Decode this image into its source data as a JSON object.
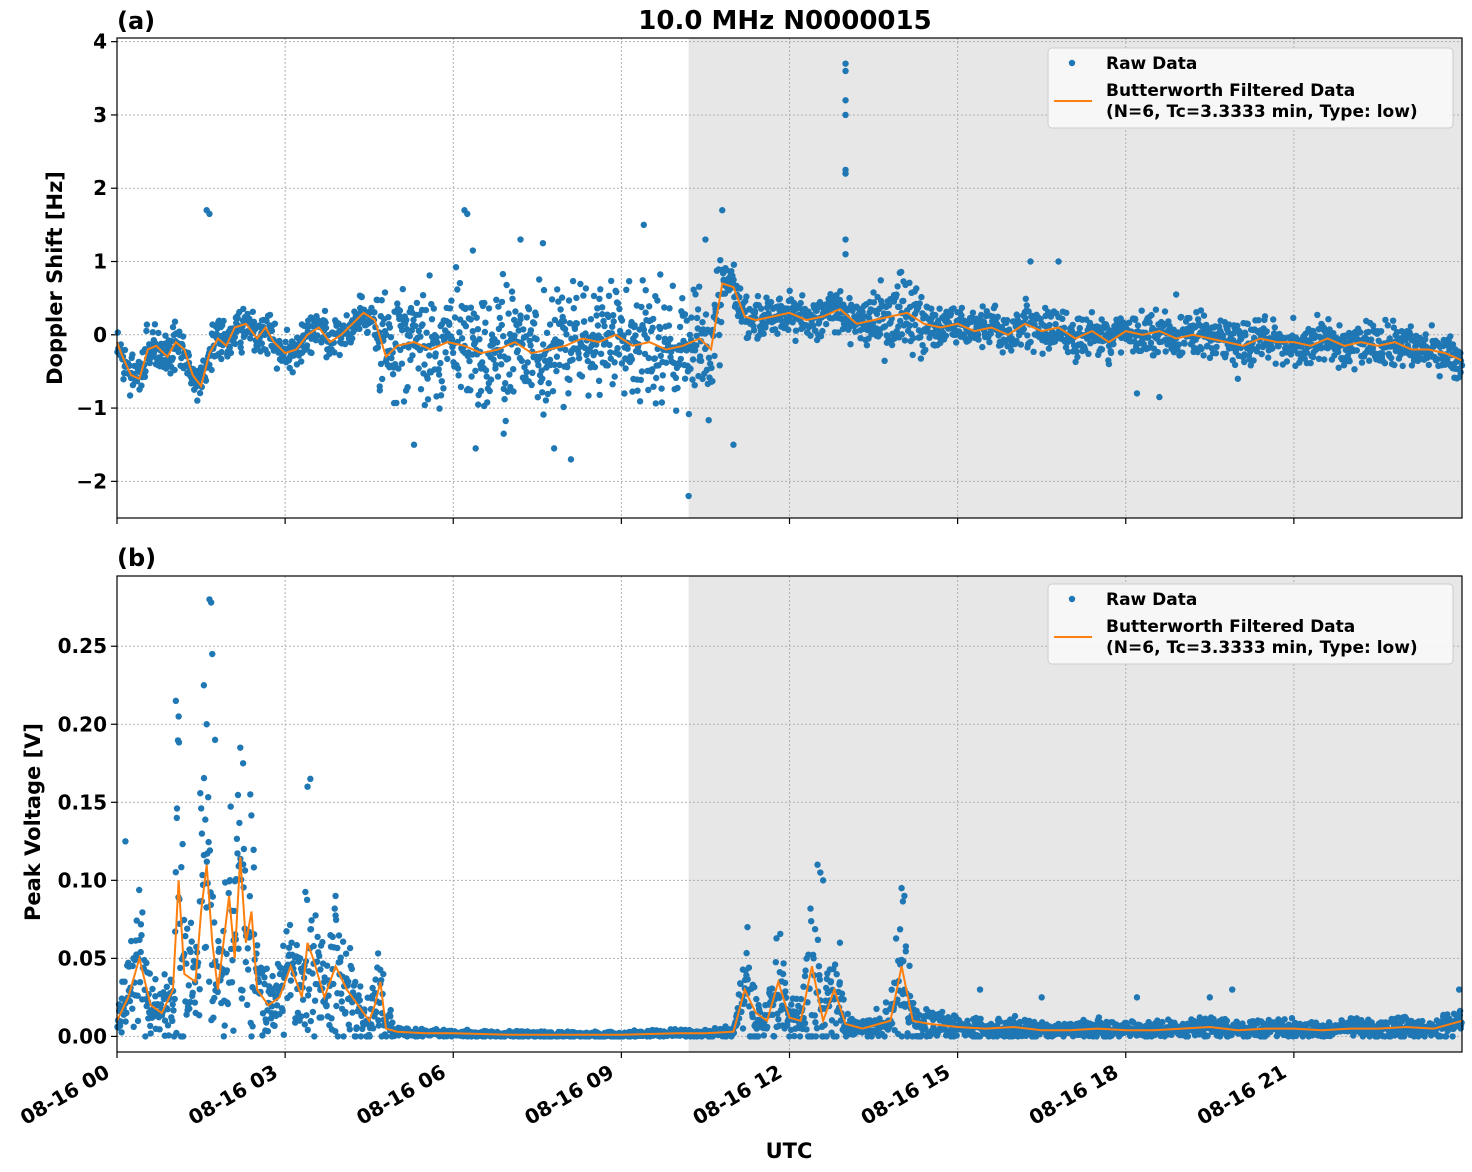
{
  "figure": {
    "title": "10.0 MHz N0000015",
    "xlabel": "UTC"
  },
  "colors": {
    "raw": "#1f77b4",
    "filtered": "#ff7f0e",
    "shade": "#e7e7e7",
    "grid": "#b0b0b0"
  },
  "legend": {
    "raw_label": "Raw Data",
    "filtered_label_line1": "Butterworth Filtered Data",
    "filtered_label_line2": "(N=6, Tc=3.3333 min, Type: low)",
    "placement": "upper right"
  },
  "chart_data": [
    {
      "type": "scatter",
      "panel_label": "(a)",
      "title": "10.0 MHz N0000015",
      "xlabel": "",
      "ylabel": "Doppler Shift [Hz]",
      "x_unit": "hours since 08-16 00:00 UTC",
      "xlim": [
        0,
        24
      ],
      "ylim": [
        -2.5,
        4.05
      ],
      "xticks": [
        "08-16 00",
        "08-16 03",
        "08-16 06",
        "08-16 09",
        "08-16 12",
        "08-16 15",
        "08-16 18",
        "08-16 21"
      ],
      "yticks": [
        "−2",
        "−1",
        "0",
        "1",
        "2",
        "3",
        "4"
      ],
      "ytick_values": [
        -2,
        -1,
        0,
        1,
        2,
        3,
        4
      ],
      "grid": true,
      "shaded_region_x": [
        10.2,
        24
      ],
      "series": [
        {
          "name": "Butterworth Filtered Data",
          "style": "line",
          "x": [
            0,
            0.1,
            0.25,
            0.4,
            0.55,
            0.7,
            0.9,
            1.05,
            1.2,
            1.35,
            1.5,
            1.65,
            1.8,
            1.95,
            2.1,
            2.3,
            2.5,
            2.65,
            2.8,
            3.0,
            3.2,
            3.4,
            3.6,
            3.8,
            4.0,
            4.2,
            4.4,
            4.6,
            4.8,
            5.0,
            5.3,
            5.6,
            5.9,
            6.2,
            6.5,
            6.8,
            7.1,
            7.4,
            7.7,
            8.0,
            8.3,
            8.6,
            8.9,
            9.2,
            9.5,
            9.8,
            10.1,
            10.4,
            10.6,
            10.8,
            11.0,
            11.2,
            11.4,
            11.7,
            12.0,
            12.3,
            12.6,
            12.9,
            13.2,
            13.5,
            13.8,
            14.1,
            14.4,
            14.7,
            15.0,
            15.3,
            15.6,
            15.9,
            16.2,
            16.5,
            16.8,
            17.1,
            17.4,
            17.7,
            18.0,
            18.3,
            18.6,
            18.9,
            19.2,
            19.5,
            19.8,
            20.1,
            20.4,
            20.7,
            21.0,
            21.3,
            21.6,
            21.9,
            22.2,
            22.5,
            22.8,
            23.1,
            23.4,
            23.7,
            24.0
          ],
          "y": [
            -0.1,
            -0.3,
            -0.55,
            -0.6,
            -0.2,
            -0.15,
            -0.3,
            -0.1,
            -0.2,
            -0.55,
            -0.7,
            -0.25,
            -0.05,
            -0.15,
            0.1,
            0.15,
            -0.05,
            0.1,
            -0.1,
            -0.25,
            -0.2,
            0.0,
            0.1,
            -0.1,
            0.0,
            0.15,
            0.3,
            0.2,
            -0.3,
            -0.15,
            -0.1,
            -0.2,
            -0.1,
            -0.15,
            -0.25,
            -0.2,
            -0.1,
            -0.25,
            -0.2,
            -0.15,
            -0.05,
            -0.1,
            0.0,
            -0.15,
            -0.1,
            -0.2,
            -0.15,
            -0.05,
            -0.2,
            0.7,
            0.65,
            0.25,
            0.2,
            0.25,
            0.3,
            0.2,
            0.25,
            0.35,
            0.15,
            0.2,
            0.25,
            0.3,
            0.15,
            0.1,
            0.15,
            0.05,
            0.1,
            0.0,
            0.15,
            0.05,
            0.1,
            -0.05,
            0.05,
            -0.1,
            0.05,
            0.0,
            0.05,
            -0.05,
            0.0,
            -0.05,
            -0.1,
            -0.15,
            -0.05,
            -0.1,
            -0.1,
            -0.15,
            -0.05,
            -0.15,
            -0.1,
            -0.15,
            -0.1,
            -0.2,
            -0.2,
            -0.25,
            -0.35
          ]
        },
        {
          "name": "Raw Data",
          "style": "points",
          "points": [
            [
              1.6,
              1.7
            ],
            [
              1.65,
              1.65
            ],
            [
              5.3,
              -1.5
            ],
            [
              6.2,
              1.7
            ],
            [
              6.25,
              1.65
            ],
            [
              6.35,
              1.15
            ],
            [
              6.4,
              -1.55
            ],
            [
              6.9,
              -1.35
            ],
            [
              7.2,
              1.3
            ],
            [
              7.6,
              1.25
            ],
            [
              7.8,
              -1.55
            ],
            [
              8.1,
              -1.7
            ],
            [
              9.4,
              1.5
            ],
            [
              10.2,
              -2.2
            ],
            [
              10.5,
              1.3
            ],
            [
              10.8,
              1.7
            ],
            [
              11.0,
              -1.5
            ],
            [
              13.0,
              3.7
            ],
            [
              13.0,
              3.6
            ],
            [
              13.0,
              3.2
            ],
            [
              13.0,
              3.0
            ],
            [
              13.0,
              2.25
            ],
            [
              13.0,
              2.2
            ],
            [
              13.0,
              1.3
            ],
            [
              13.0,
              1.1
            ],
            [
              16.3,
              1.0
            ],
            [
              16.8,
              1.0
            ],
            [
              17.7,
              -0.4
            ],
            [
              18.2,
              -0.8
            ],
            [
              18.6,
              -0.85
            ],
            [
              18.9,
              0.55
            ],
            [
              20.0,
              -0.6
            ],
            [
              21.8,
              -0.45
            ]
          ]
        }
      ]
    },
    {
      "type": "scatter",
      "panel_label": "(b)",
      "title": "",
      "xlabel": "UTC",
      "ylabel": "Peak Voltage [V]",
      "x_unit": "hours since 08-16 00:00 UTC",
      "xlim": [
        0,
        24
      ],
      "ylim": [
        -0.01,
        0.295
      ],
      "xticks": [
        "08-16 00",
        "08-16 03",
        "08-16 06",
        "08-16 09",
        "08-16 12",
        "08-16 15",
        "08-16 18",
        "08-16 21"
      ],
      "yticks": [
        "0.00",
        "0.05",
        "0.10",
        "0.15",
        "0.20",
        "0.25"
      ],
      "ytick_values": [
        0,
        0.05,
        0.1,
        0.15,
        0.2,
        0.25
      ],
      "grid": true,
      "shaded_region_x": [
        10.2,
        24
      ],
      "series": [
        {
          "name": "Butterworth Filtered Data",
          "style": "line",
          "x": [
            0,
            0.2,
            0.4,
            0.6,
            0.8,
            1.0,
            1.1,
            1.2,
            1.4,
            1.5,
            1.6,
            1.7,
            1.8,
            2.0,
            2.1,
            2.2,
            2.3,
            2.4,
            2.5,
            2.7,
            2.9,
            3.1,
            3.3,
            3.4,
            3.5,
            3.7,
            3.9,
            4.1,
            4.3,
            4.5,
            4.6,
            4.7,
            4.8,
            5.0,
            5.5,
            6.0,
            7.0,
            8.0,
            9.0,
            10.0,
            10.5,
            11.0,
            11.2,
            11.4,
            11.6,
            11.8,
            12.0,
            12.2,
            12.4,
            12.6,
            12.8,
            13.0,
            13.3,
            13.6,
            13.8,
            14.0,
            14.2,
            14.5,
            15.0,
            15.5,
            16.0,
            16.5,
            17.0,
            17.5,
            18.0,
            18.5,
            19.0,
            19.5,
            20.0,
            20.5,
            21.0,
            21.5,
            22.0,
            22.5,
            23.0,
            23.5,
            24.0
          ],
          "y": [
            0.01,
            0.025,
            0.05,
            0.02,
            0.015,
            0.03,
            0.1,
            0.04,
            0.035,
            0.08,
            0.11,
            0.06,
            0.03,
            0.09,
            0.05,
            0.115,
            0.06,
            0.08,
            0.03,
            0.02,
            0.025,
            0.045,
            0.025,
            0.06,
            0.05,
            0.025,
            0.045,
            0.03,
            0.02,
            0.01,
            0.02,
            0.035,
            0.005,
            0.003,
            0.002,
            0.002,
            0.001,
            0.001,
            0.001,
            0.002,
            0.002,
            0.003,
            0.03,
            0.015,
            0.01,
            0.035,
            0.012,
            0.01,
            0.045,
            0.01,
            0.03,
            0.008,
            0.005,
            0.008,
            0.01,
            0.045,
            0.01,
            0.008,
            0.006,
            0.005,
            0.006,
            0.004,
            0.004,
            0.005,
            0.004,
            0.004,
            0.005,
            0.006,
            0.004,
            0.005,
            0.005,
            0.004,
            0.005,
            0.005,
            0.006,
            0.005,
            0.01
          ]
        },
        {
          "name": "Raw Data",
          "style": "points",
          "points": [
            [
              0.15,
              0.125
            ],
            [
              1.05,
              0.215
            ],
            [
              1.1,
              0.205
            ],
            [
              1.55,
              0.225
            ],
            [
              1.6,
              0.2
            ],
            [
              1.65,
              0.28
            ],
            [
              1.68,
              0.278
            ],
            [
              1.7,
              0.245
            ],
            [
              1.75,
              0.19
            ],
            [
              2.2,
              0.185
            ],
            [
              2.25,
              0.175
            ],
            [
              3.4,
              0.16
            ],
            [
              3.45,
              0.165
            ],
            [
              3.9,
              0.09
            ],
            [
              11.25,
              0.07
            ],
            [
              12.5,
              0.11
            ],
            [
              12.55,
              0.105
            ],
            [
              12.6,
              0.1
            ],
            [
              12.9,
              0.06
            ],
            [
              14.0,
              0.095
            ],
            [
              14.05,
              0.09
            ],
            [
              15.4,
              0.03
            ],
            [
              16.5,
              0.025
            ],
            [
              18.2,
              0.025
            ],
            [
              19.5,
              0.025
            ],
            [
              19.9,
              0.03
            ],
            [
              23.95,
              0.03
            ]
          ]
        }
      ]
    }
  ]
}
